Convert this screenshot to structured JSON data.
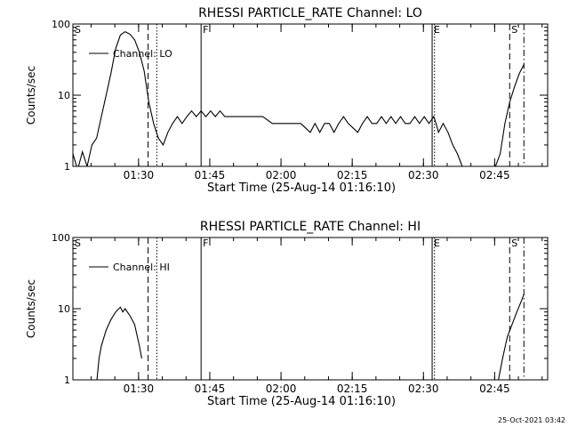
{
  "footer": {
    "timestamp": "25-Oct-2021 03:42"
  },
  "chart_data": [
    {
      "type": "line",
      "title": "RHESSI PARTICLE_RATE Channel: LO",
      "xlabel": "Start Time (25-Aug-14 01:16:10)",
      "ylabel": "Counts/sec",
      "yscale": "log",
      "ylim": [
        1,
        100
      ],
      "xlim_minutes_since_start": [
        0,
        100
      ],
      "x_ticks": [
        "01:30",
        "01:45",
        "02:00",
        "02:15",
        "02:30",
        "02:45"
      ],
      "y_ticks": [
        "1",
        "10",
        "100"
      ],
      "legend": "Channel: LO",
      "legend_position": "top-left",
      "markers": [
        {
          "label": "S",
          "time": "01:16:10",
          "style": "none"
        },
        {
          "label": "",
          "time": "01:32:00",
          "style": "dashed"
        },
        {
          "label": "",
          "time": "01:33:50",
          "style": "dotted"
        },
        {
          "label": "F",
          "time": "01:43:10",
          "style": "solid"
        },
        {
          "label": "E",
          "time": "02:31:50",
          "style": "solid"
        },
        {
          "label": "",
          "time": "02:32:20",
          "style": "dotted"
        },
        {
          "label": "S",
          "time": "02:48:10",
          "style": "dashed"
        },
        {
          "label": "",
          "time": "02:51:10",
          "style": "dashdot"
        }
      ],
      "series": [
        {
          "values": [
            [
              0,
              1.5
            ],
            [
              1,
              0.9
            ],
            [
              2,
              1.6
            ],
            [
              3,
              1.0
            ],
            [
              4,
              2.0
            ],
            [
              5,
              2.5
            ],
            [
              6,
              5
            ],
            [
              7,
              10
            ],
            [
              8,
              20
            ],
            [
              9,
              45
            ],
            [
              10,
              70
            ],
            [
              11,
              78
            ],
            [
              12,
              72
            ],
            [
              13,
              60
            ],
            [
              14,
              40
            ],
            [
              15,
              22
            ],
            [
              16,
              8
            ],
            [
              17,
              4
            ],
            [
              18,
              2.5
            ],
            [
              19,
              2.0
            ],
            [
              20,
              3
            ],
            [
              21,
              4
            ],
            [
              22,
              5
            ],
            [
              23,
              4
            ],
            [
              24,
              5
            ],
            [
              25,
              6
            ],
            [
              26,
              5
            ],
            [
              27,
              6
            ],
            [
              28,
              5
            ],
            [
              29,
              6
            ],
            [
              30,
              5
            ],
            [
              31,
              6
            ],
            [
              32,
              5
            ],
            [
              33,
              5
            ],
            [
              34,
              5
            ],
            [
              36,
              5
            ],
            [
              38,
              5
            ],
            [
              40,
              5
            ],
            [
              42,
              4
            ],
            [
              44,
              4
            ],
            [
              46,
              4
            ],
            [
              48,
              4
            ],
            [
              50,
              3
            ],
            [
              51,
              4
            ],
            [
              52,
              3
            ],
            [
              53,
              4
            ],
            [
              54,
              4
            ],
            [
              55,
              3
            ],
            [
              56,
              4
            ],
            [
              57,
              5
            ],
            [
              58,
              4
            ],
            [
              60,
              3
            ],
            [
              61,
              4
            ],
            [
              62,
              5
            ],
            [
              63,
              4
            ],
            [
              64,
              4
            ],
            [
              65,
              5
            ],
            [
              66,
              4
            ],
            [
              67,
              5
            ],
            [
              68,
              4
            ],
            [
              69,
              5
            ],
            [
              70,
              4
            ],
            [
              71,
              4
            ],
            [
              72,
              5
            ],
            [
              73,
              4
            ],
            [
              74,
              5
            ],
            [
              75,
              4
            ],
            [
              76,
              5
            ],
            [
              76.5,
              4
            ],
            [
              77,
              3
            ],
            [
              78,
              4
            ],
            [
              79,
              3
            ],
            [
              80,
              2
            ],
            [
              81,
              1.5
            ],
            [
              82,
              1.0
            ],
            [
              85,
              0.9
            ],
            [
              88,
              0.9
            ],
            [
              89,
              1.0
            ],
            [
              90,
              1.5
            ],
            [
              91,
              4
            ],
            [
              92,
              8
            ],
            [
              93,
              13
            ],
            [
              94,
              20
            ],
            [
              95,
              27
            ]
          ]
        }
      ]
    },
    {
      "type": "line",
      "title": "RHESSI PARTICLE_RATE Channel: HI",
      "xlabel": "Start Time (25-Aug-14 01:16:10)",
      "ylabel": "Counts/sec",
      "yscale": "log",
      "ylim": [
        1,
        100
      ],
      "xlim_minutes_since_start": [
        0,
        100
      ],
      "x_ticks": [
        "01:30",
        "01:45",
        "02:00",
        "02:15",
        "02:30",
        "02:45"
      ],
      "y_ticks": [
        "1",
        "10",
        "100"
      ],
      "legend": "Channel: HI",
      "legend_position": "top-left",
      "markers": [
        {
          "label": "S",
          "time": "01:16:10",
          "style": "none"
        },
        {
          "label": "",
          "time": "01:32:00",
          "style": "dashed"
        },
        {
          "label": "",
          "time": "01:33:50",
          "style": "dotted"
        },
        {
          "label": "F",
          "time": "01:43:10",
          "style": "solid"
        },
        {
          "label": "E",
          "time": "02:31:50",
          "style": "solid"
        },
        {
          "label": "",
          "time": "02:32:20",
          "style": "dotted"
        },
        {
          "label": "S",
          "time": "02:48:10",
          "style": "dashed"
        },
        {
          "label": "",
          "time": "02:51:10",
          "style": "dashdot"
        }
      ],
      "series": [
        {
          "values": [
            [
              5,
              0.9
            ],
            [
              5.5,
              2
            ],
            [
              6,
              3
            ],
            [
              7,
              5
            ],
            [
              8,
              7
            ],
            [
              9,
              9
            ],
            [
              10,
              10.5
            ],
            [
              10.5,
              9
            ],
            [
              11,
              10
            ],
            [
              12,
              8
            ],
            [
              13,
              6
            ],
            [
              14,
              3
            ],
            [
              14.5,
              2
            ]
          ]
        },
        {
          "values": [
            [
              89.5,
              0.9
            ],
            [
              90.5,
              2
            ],
            [
              91.5,
              4
            ],
            [
              92.5,
              6
            ],
            [
              93.5,
              9
            ],
            [
              94.5,
              13
            ],
            [
              95,
              16
            ]
          ]
        }
      ]
    }
  ]
}
